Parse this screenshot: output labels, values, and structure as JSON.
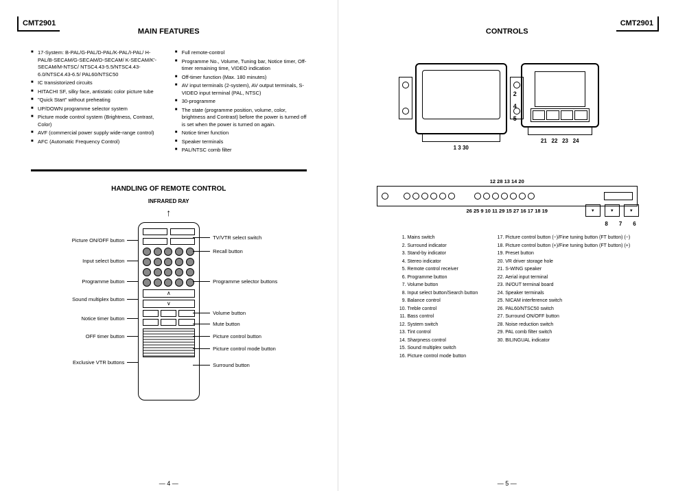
{
  "model": "CMT2901",
  "left_page": {
    "title_main": "MAIN FEATURES",
    "features_col1": [
      "17-System: B-PAL/G-PAL/D-PAL/K-PAL/I-PAL/ H-PAL/B-SECAM/G-SECAM/D-SECAM/ K-SECAM/K'-SECAM/M-NTSC/ NTSC4.43-5.5/NTSC4.43-6.0/NTSC4.43-6.5/ PAL60/NTSC50",
      "IC transistorized circuits",
      "HITACHI SF, silky face, antistatic color picture tube",
      "\"Quick Start\" without preheating",
      "UP/DOWN programme selector system",
      "Picture mode control system (Brightness, Contrast, Color)",
      "AVF (commercial power supply wide-range control)",
      "AFC (Automatic Frequency Control)"
    ],
    "features_col2": [
      "Full remote-control",
      "Programme No., Volume, Tuning bar, Notice timer, Off-timer remaining time, VIDEO indication",
      "Off-timer function (Max. 180 minutes)",
      "AV input terminals (2-system), AV output terminals, S-VIDEO input terminal (PAL, NTSC)",
      "30-programme",
      "The state (programme position, volume, color, brightness and Contrast) before the power is turned off is set when the power is turned on again.",
      "Notice timer function",
      "Speaker terminals",
      "PAL/NTSC comb filter"
    ],
    "title_remote": "HANDLING OF REMOTE CONTROL",
    "infrared": "INFRARED RAY",
    "remote_labels_left": [
      "Picture ON/OFF button",
      "Input select button",
      "Programme button",
      "Sound multiplex button",
      "Notice timer button",
      "OFF timer button",
      "Exclusive VTR buttons"
    ],
    "remote_labels_right": [
      "TV/VTR select switch",
      "Recall button",
      "Programme selector buttons",
      "Volume button",
      "Mute button",
      "Picture control button",
      "Picture control mode button",
      "Surround button"
    ],
    "page_num": "— 4 —"
  },
  "right_page": {
    "title": "CONTROLS",
    "front_nums": "1  3 30",
    "front_side_nums": [
      "2",
      "4",
      "5"
    ],
    "back_nums": [
      "21",
      "22",
      "23",
      "24"
    ],
    "panel_top_nums": "12 28 13 14           20",
    "panel_bottom_nums": "26      25  9 10 11        29   15 27 16 17 18 19",
    "box_nums": [
      "8",
      "7",
      "6"
    ],
    "legend_col1": [
      "Mains switch",
      "Surround indicator",
      "Stand-by indicator",
      "Stereo indicator",
      "Remote control receiver",
      "Programme button",
      "Volume button",
      "Input select button/Search button",
      "Balance control",
      "Treble control",
      "Bass control",
      "System switch",
      "Tint control",
      "Sharpness control",
      "Sound multiplex switch",
      "Picture control mode button"
    ],
    "legend_col2": [
      "Picture control button (−)/Fine tuning button (FT button) (−)",
      "Picture control button (+)/Fine tuning button (FT button) (+)",
      "Preset button",
      "VR driver storage hole",
      "S-WING speaker",
      "Aerial input terminal",
      "IN/OUT terminal board",
      "Speaker terminals",
      "NICAM interference switch",
      "PAL60/NTSC50 switch",
      "Surround ON/OFF button",
      "Noise reduction switch",
      "PAL comb filter switch",
      "BILINGUAL indicator"
    ],
    "page_num": "— 5 —"
  }
}
